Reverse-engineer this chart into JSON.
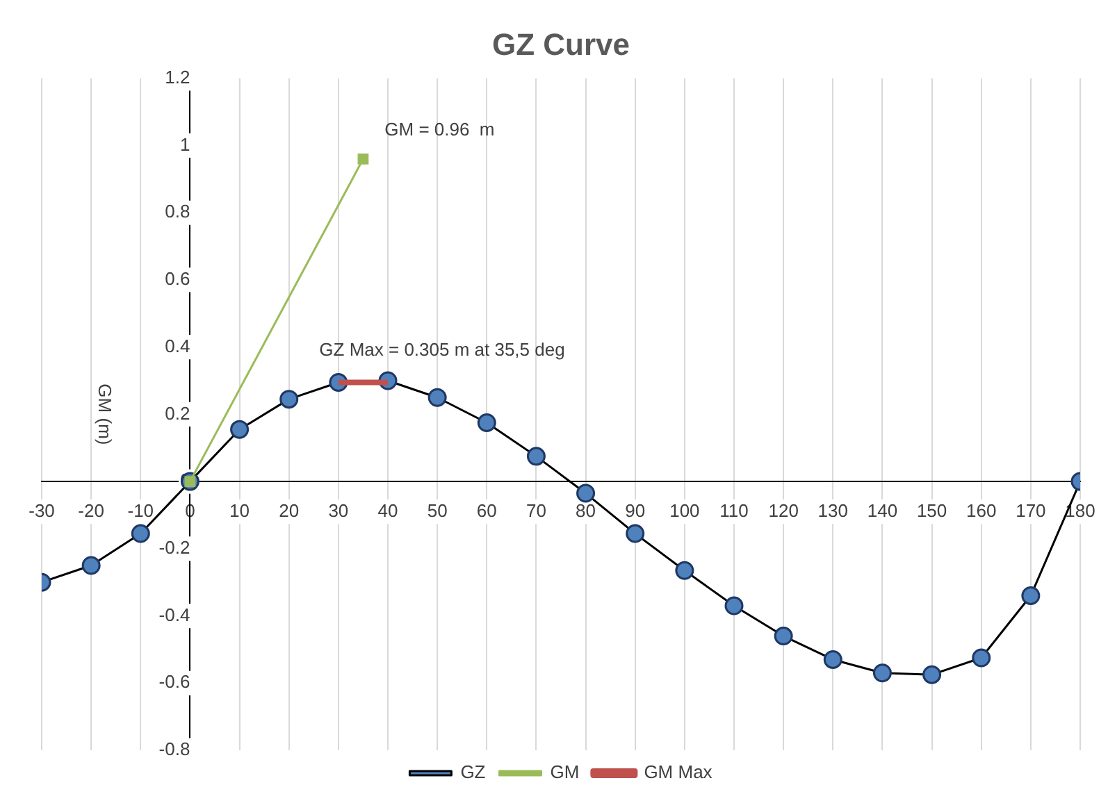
{
  "chart_data": {
    "type": "line",
    "title": "GZ Curve",
    "ylabel": "GM (m)",
    "xlim": [
      -30,
      180
    ],
    "xticks": [
      -30,
      -20,
      -10,
      0,
      10,
      20,
      30,
      40,
      50,
      60,
      70,
      80,
      90,
      100,
      110,
      120,
      130,
      140,
      150,
      160,
      170,
      180
    ],
    "ylim": [
      -0.8,
      1.2
    ],
    "yticks": [
      -0.8,
      -0.6,
      -0.4,
      -0.2,
      0,
      0.2,
      0.4,
      0.6,
      0.8,
      1,
      1.2
    ],
    "grid": "x",
    "legend": "bottom",
    "series": [
      {
        "name": "GZ",
        "color": "#000000",
        "marker": "circle",
        "x": [
          -30,
          -20,
          -10,
          0,
          10,
          20,
          30,
          40,
          50,
          60,
          70,
          80,
          90,
          100,
          110,
          120,
          130,
          140,
          150,
          160,
          170,
          180
        ],
        "values": [
          -0.3,
          -0.25,
          -0.155,
          0,
          0.155,
          0.245,
          0.295,
          0.3,
          0.25,
          0.175,
          0.075,
          -0.035,
          -0.155,
          -0.265,
          -0.37,
          -0.46,
          -0.53,
          -0.57,
          -0.575,
          -0.525,
          -0.34,
          0
        ]
      },
      {
        "name": "GM",
        "color": "#9bbb59",
        "marker": "square",
        "x": [
          0,
          35
        ],
        "values": [
          0,
          0.96
        ]
      },
      {
        "name": "GM Max",
        "color": "#c0504d",
        "marker": "none",
        "x": [
          30,
          40
        ],
        "values": [
          0.295,
          0.295
        ]
      }
    ],
    "annotations": [
      {
        "text": "GM = 0.96  m",
        "x": 35,
        "y": 0.96
      },
      {
        "text": "GZ Max = 0.305 m at 35,5 deg",
        "x": 35.5,
        "y": 0.305
      }
    ]
  }
}
